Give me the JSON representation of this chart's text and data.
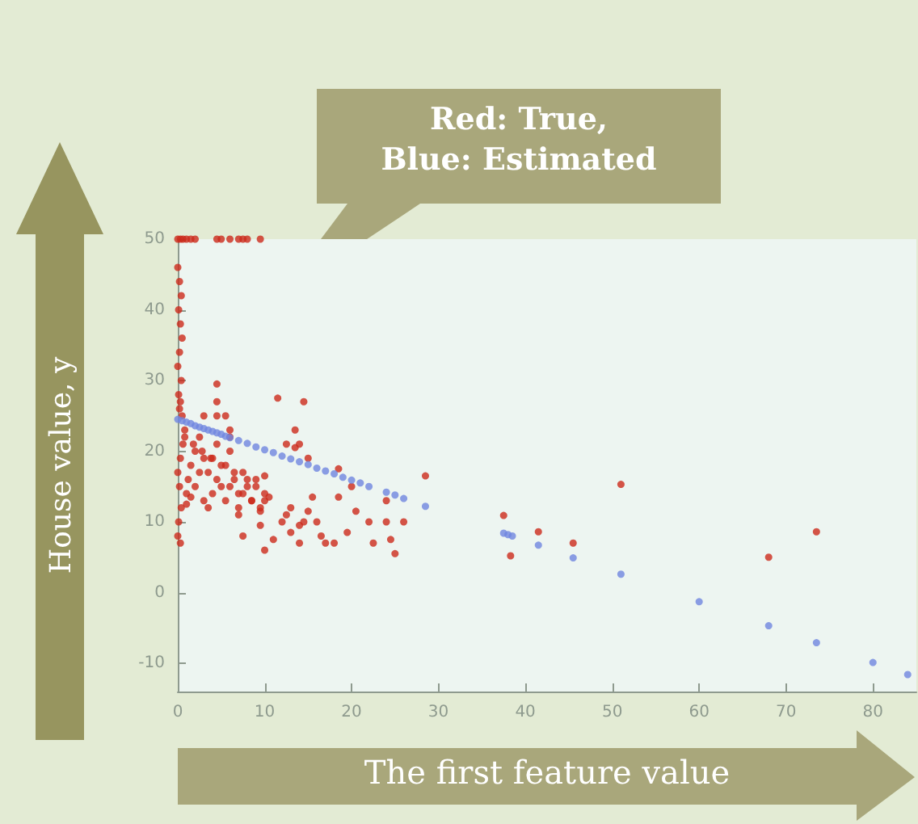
{
  "chart_data": {
    "type": "scatter",
    "xlabel": "The first feature value",
    "ylabel": "House value, y",
    "annotations": [
      "Red: True,\nBlue: Estimated"
    ],
    "xlim": [
      0,
      85
    ],
    "ylim": [
      -14,
      50
    ],
    "xticks": [
      0,
      10,
      20,
      30,
      40,
      50,
      60,
      70,
      80
    ],
    "yticks": [
      -10,
      0,
      10,
      20,
      30,
      40,
      50
    ],
    "grid": false,
    "marker": "circle",
    "series": [
      {
        "color": "#cc2b1c",
        "x": [
          0,
          0.3,
          0.6,
          1,
          1.5,
          2,
          4.5,
          5,
          6,
          7,
          7.5,
          8,
          9.5,
          0,
          0.2,
          0.4,
          0.1,
          0.3,
          0.5,
          0.2,
          0,
          0.4,
          0.1,
          0.3,
          0.2,
          0.5,
          0,
          0.3,
          0.1,
          0.4,
          0.2,
          0,
          0.3,
          0.6,
          0.8,
          1,
          1.2,
          1.5,
          2,
          2.5,
          3,
          3.5,
          4,
          4.5,
          5,
          5.5,
          6,
          6.5,
          7,
          7.5,
          8,
          8.5,
          9,
          9.5,
          10,
          1,
          1.5,
          2,
          2.5,
          3,
          3.5,
          4,
          4.5,
          5,
          5.5,
          6,
          6.5,
          7,
          7.5,
          8,
          8.5,
          9,
          9.5,
          10,
          0.8,
          1.8,
          2.8,
          3.8,
          4.5,
          4.5,
          3,
          4.5,
          5.5,
          6,
          6,
          11.5,
          14.5,
          13.5,
          14,
          12.5,
          13.5,
          15,
          18.5,
          20,
          24,
          28.5,
          10,
          10.5,
          7,
          7.5,
          9.5,
          10,
          11,
          12,
          12.5,
          13,
          14,
          14.5,
          15,
          15.5,
          16,
          16.5,
          17,
          18,
          18.5,
          19.5,
          20.5,
          22,
          22.5,
          24,
          24.5,
          25,
          26,
          13,
          14,
          37.5,
          38.3,
          41.5,
          45.5,
          51,
          68,
          73.5
        ],
        "values": [
          50,
          50,
          50,
          50,
          50,
          50,
          50,
          50,
          50,
          50,
          50,
          50,
          50,
          46,
          44,
          42,
          40,
          38,
          36,
          34,
          32,
          30,
          28,
          27,
          26,
          25,
          8,
          7,
          10,
          12,
          15,
          17,
          19,
          21,
          23,
          14,
          16,
          18,
          20,
          22,
          13,
          17,
          19,
          21,
          15,
          18,
          20,
          16,
          14,
          17,
          15,
          13,
          16,
          12,
          14,
          12.5,
          13.5,
          15,
          17,
          19,
          12,
          14,
          16,
          18,
          13,
          15,
          17,
          12,
          14,
          16,
          13,
          15,
          11.5,
          13,
          22,
          21,
          20,
          19,
          29.5,
          27,
          25,
          25,
          25,
          23,
          22,
          27.5,
          27,
          23,
          21,
          21,
          20.5,
          19,
          17.5,
          15,
          13,
          16.5,
          16.5,
          13.5,
          11,
          8,
          9.5,
          6,
          7.5,
          10,
          11,
          8.5,
          7,
          10,
          11.5,
          13.5,
          10,
          8,
          7,
          7,
          13.5,
          8.5,
          11.5,
          10,
          7,
          10,
          7.5,
          5.5,
          10,
          12,
          9.5,
          10.9,
          5.2,
          8.6,
          7,
          15.3,
          5,
          8.6
        ]
      },
      {
        "color": "#6f86e0",
        "x": [
          0,
          0.5,
          1,
          1.5,
          2,
          2.5,
          3,
          3.5,
          4,
          4.5,
          5,
          5.5,
          6,
          7,
          8,
          9,
          10,
          11,
          12,
          13,
          14,
          15,
          16,
          17,
          18,
          19,
          20,
          21,
          22,
          24,
          25,
          26,
          28.5,
          37.5,
          38,
          38.5,
          41.5,
          45.5,
          51,
          60,
          68,
          73.5,
          80,
          84
        ],
        "values": [
          24.5,
          24.3,
          24.1,
          23.9,
          23.6,
          23.4,
          23.2,
          23,
          22.8,
          22.6,
          22.4,
          22.1,
          21.9,
          21.5,
          21.1,
          20.6,
          20.2,
          19.8,
          19.3,
          18.9,
          18.5,
          18.1,
          17.6,
          17.2,
          16.8,
          16.3,
          15.9,
          15.5,
          15,
          14.2,
          13.8,
          13.3,
          12.2,
          8.4,
          8.2,
          8,
          6.7,
          4.9,
          2.6,
          -1.3,
          -4.7,
          -7.1,
          -9.9,
          -11.6
        ]
      }
    ]
  }
}
